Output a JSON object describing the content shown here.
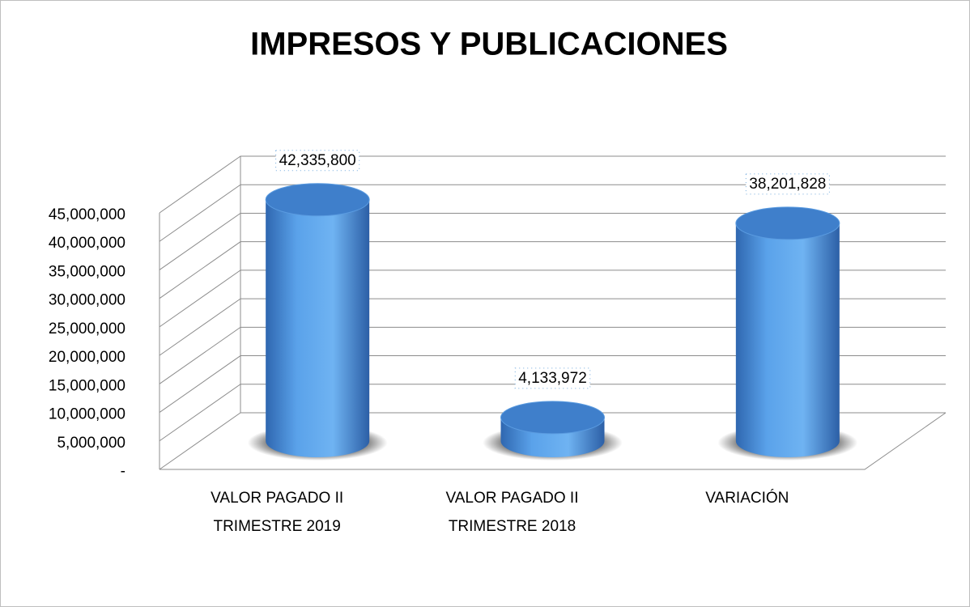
{
  "chart_data": {
    "type": "bar3d",
    "title": "IMPRESOS Y PUBLICACIONES",
    "categories": [
      "VALOR PAGADO II TRIMESTRE 2019",
      "VALOR PAGADO II TRIMESTRE 2018",
      "VARIACIÓN"
    ],
    "values": [
      42335800,
      4133972,
      38201828
    ],
    "value_labels": [
      "42,335,800",
      "4,133,972",
      "38,201,828"
    ],
    "color": "#4a90e2",
    "ylim": [
      0,
      45000000
    ],
    "yticks": [
      {
        "value": 0,
        "label": "-"
      },
      {
        "value": 5000000,
        "label": "5,000,000"
      },
      {
        "value": 10000000,
        "label": "10,000,000"
      },
      {
        "value": 15000000,
        "label": "15,000,000"
      },
      {
        "value": 20000000,
        "label": "20,000,000"
      },
      {
        "value": 25000000,
        "label": "25,000,000"
      },
      {
        "value": 30000000,
        "label": "30,000,000"
      },
      {
        "value": 35000000,
        "label": "35,000,000"
      },
      {
        "value": 40000000,
        "label": "40,000,000"
      },
      {
        "value": 45000000,
        "label": "45,000,000"
      }
    ],
    "grid": true
  }
}
